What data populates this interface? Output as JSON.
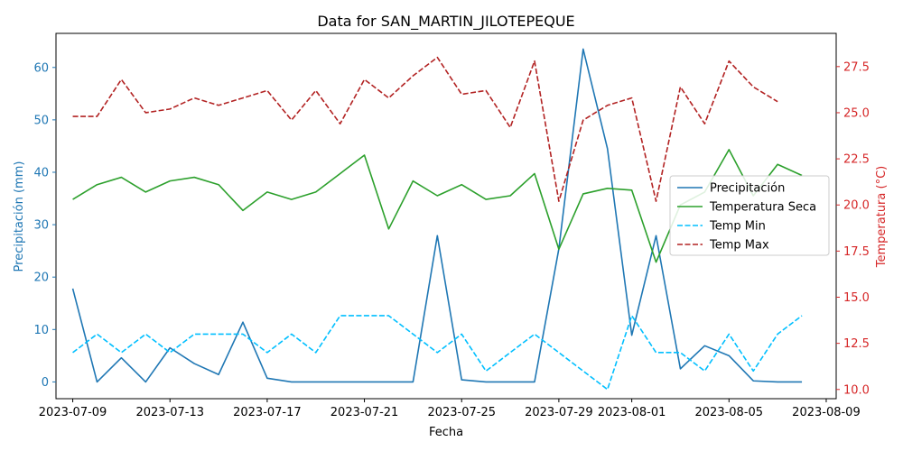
{
  "chart_data": {
    "type": "line",
    "title": "Data for SAN_MARTIN_JILOTEPEQUE",
    "xlabel": "Fecha",
    "ylabel_left": "Precipitación (mm)",
    "ylabel_right": "Temperatura (°C)",
    "x_ticks": [
      "2023-07-09",
      "2023-07-13",
      "2023-07-17",
      "2023-07-21",
      "2023-07-25",
      "2023-07-29",
      "2023-08-01",
      "2023-08-05",
      "2023-08-09"
    ],
    "y_ticks_left": [
      "0",
      "10",
      "20",
      "30",
      "40",
      "50",
      "60"
    ],
    "y_ticks_right": [
      "10.0",
      "12.5",
      "15.0",
      "17.5",
      "20.0",
      "22.5",
      "25.0",
      "27.5"
    ],
    "xlim": [
      "2023-07-08",
      "2023-08-09"
    ],
    "ylim_left": [
      -3.2,
      66.5
    ],
    "ylim_right": [
      9.5,
      29.3
    ],
    "legend_position": "center-right",
    "dates": [
      "2023-07-09",
      "2023-07-10",
      "2023-07-11",
      "2023-07-12",
      "2023-07-13",
      "2023-07-14",
      "2023-07-15",
      "2023-07-16",
      "2023-07-17",
      "2023-07-18",
      "2023-07-19",
      "2023-07-20",
      "2023-07-21",
      "2023-07-22",
      "2023-07-23",
      "2023-07-24",
      "2023-07-25",
      "2023-07-26",
      "2023-07-27",
      "2023-07-28",
      "2023-07-29",
      "2023-07-30",
      "2023-07-31",
      "2023-08-01",
      "2023-08-02",
      "2023-08-03",
      "2023-08-04",
      "2023-08-05",
      "2023-08-06",
      "2023-08-07",
      "2023-08-08"
    ],
    "series": [
      {
        "name": "Precipitación",
        "axis": "left",
        "color": "#1f77b4",
        "dash": "solid",
        "values": [
          17.8,
          0.0,
          4.6,
          0.0,
          6.5,
          3.5,
          1.4,
          11.4,
          0.7,
          0.0,
          0.0,
          0.0,
          0.0,
          0.0,
          0.0,
          27.9,
          0.4,
          0.0,
          0.0,
          0.0,
          25.4,
          63.5,
          44.5,
          8.9,
          27.9,
          2.5,
          6.9,
          5.0,
          0.2,
          0.0,
          0.0
        ]
      },
      {
        "name": "Temperatura Seca",
        "axis": "right",
        "color": "#2ca02c",
        "dash": "solid",
        "values": [
          20.3,
          21.1,
          21.5,
          20.7,
          21.3,
          21.5,
          21.1,
          19.7,
          20.7,
          20.3,
          20.7,
          21.7,
          22.7,
          18.7,
          21.3,
          20.5,
          21.1,
          20.3,
          20.5,
          21.7,
          17.6,
          20.6,
          20.9,
          20.8,
          16.9,
          20.0,
          20.7,
          23.0,
          20.5,
          22.2,
          21.6
        ]
      },
      {
        "name": "Temp Min",
        "axis": "right",
        "color": "#00bfff",
        "dash": "dashed",
        "values": [
          12.0,
          13.0,
          12.0,
          13.0,
          12.0,
          13.0,
          13.0,
          13.0,
          12.0,
          13.0,
          12.0,
          14.0,
          14.0,
          14.0,
          13.0,
          12.0,
          13.0,
          11.0,
          12.0,
          13.0,
          12.0,
          11.0,
          10.0,
          14.0,
          12.0,
          12.0,
          11.0,
          13.0,
          11.0,
          13.0,
          14.0
        ]
      },
      {
        "name": "Temp Max",
        "axis": "right",
        "color": "#b22222",
        "dash": "dashed",
        "values": [
          24.8,
          24.8,
          26.8,
          25.0,
          25.2,
          25.8,
          25.4,
          25.8,
          26.2,
          24.6,
          26.2,
          24.4,
          26.8,
          25.8,
          27.0,
          28.0,
          26.0,
          26.2,
          24.2,
          27.8,
          20.2,
          24.6,
          25.4,
          25.8,
          20.2,
          26.4,
          24.4,
          27.8,
          26.4,
          25.6,
          null
        ]
      }
    ]
  }
}
